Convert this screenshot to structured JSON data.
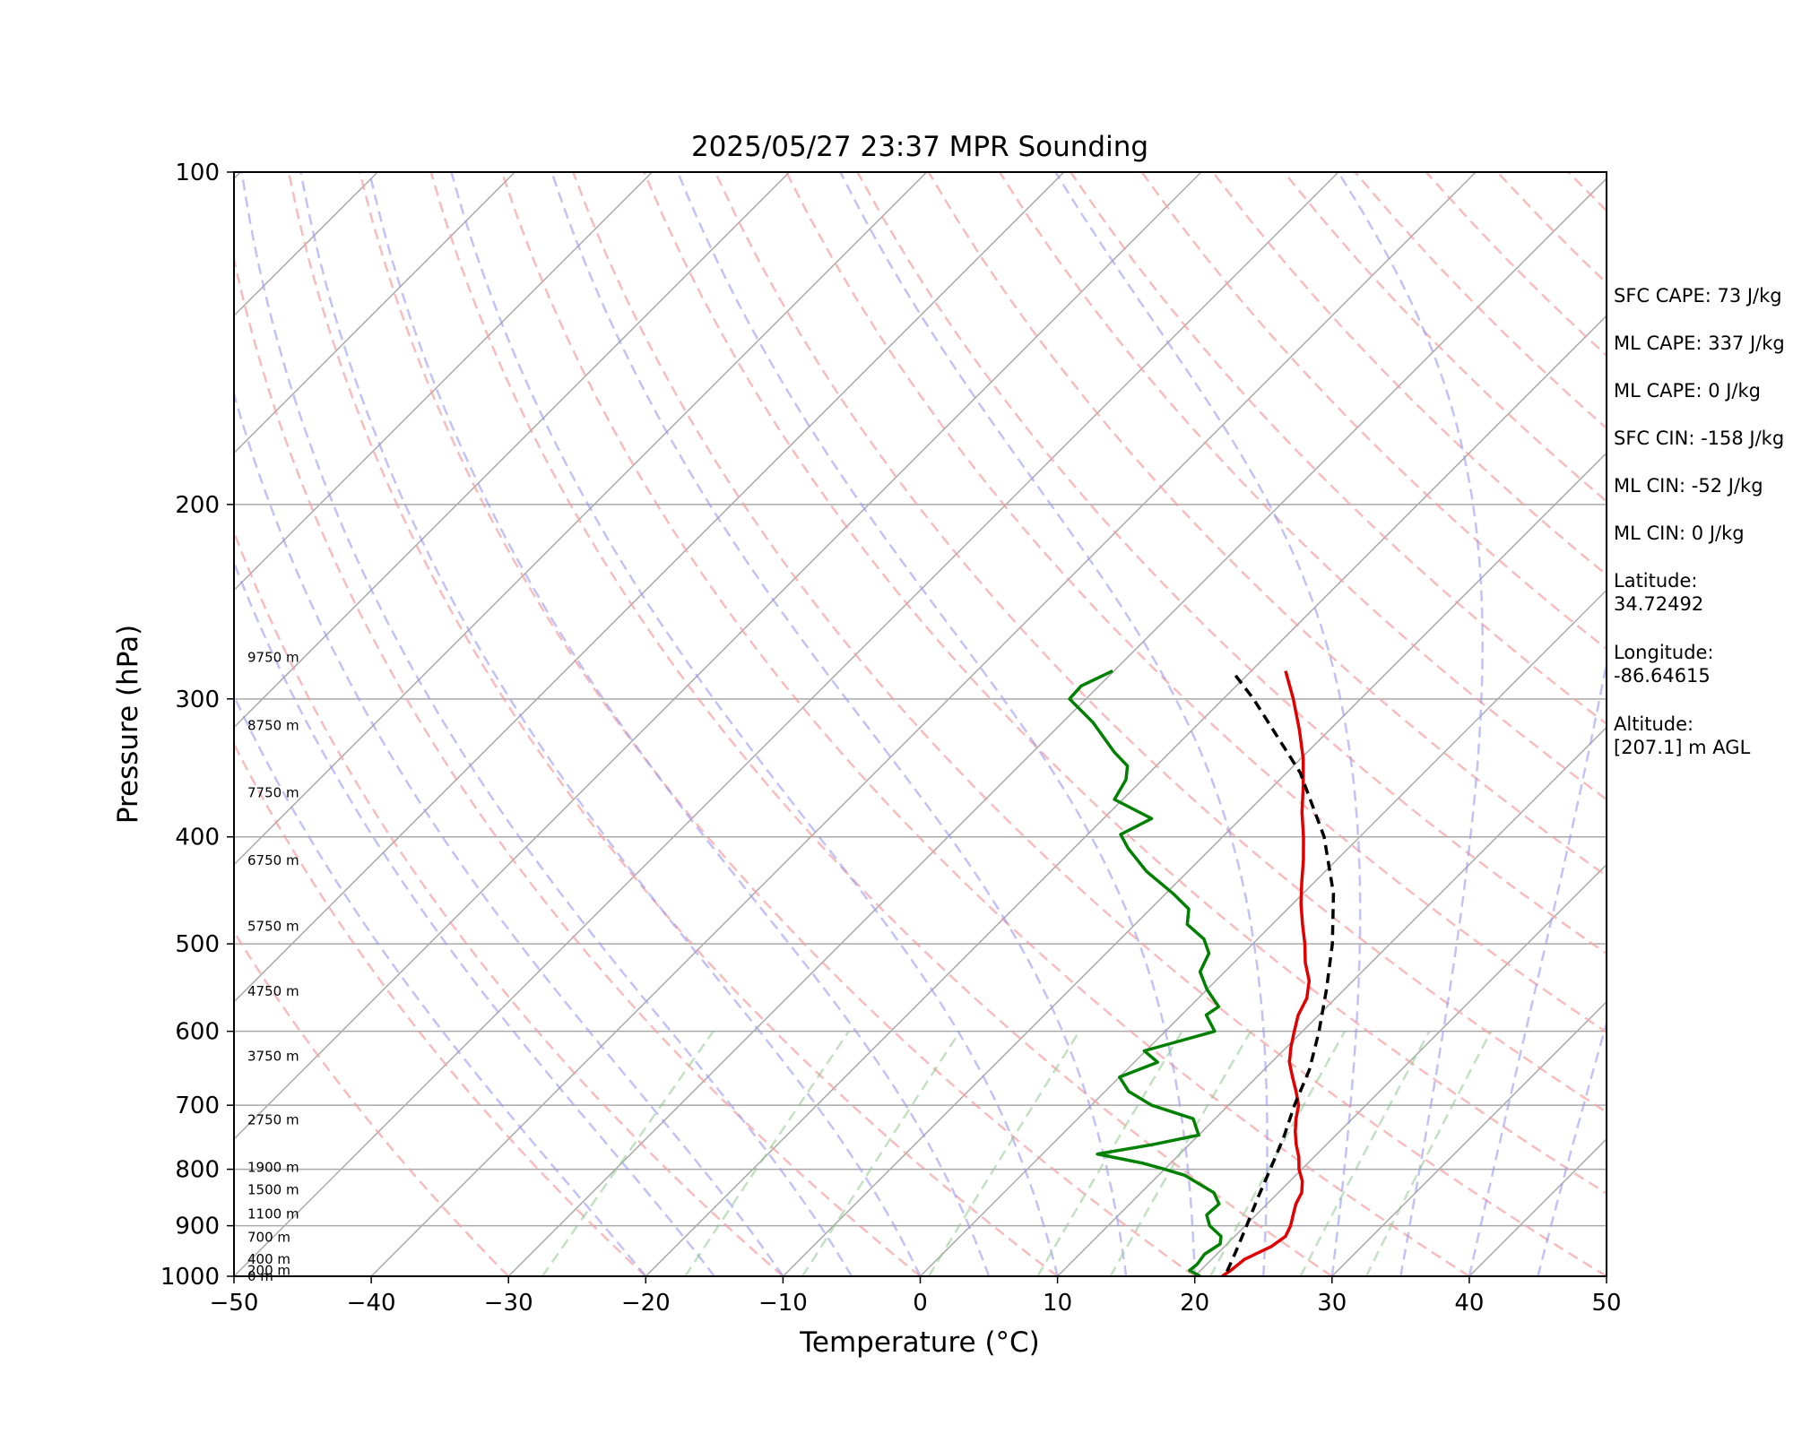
{
  "chart_data": {
    "type": "line",
    "title": "2025/05/27 23:37 MPR Sounding",
    "xlabel": "Temperature (°C)",
    "ylabel": "Pressure (hPa)",
    "xlim": [
      -50,
      50
    ],
    "ylim": [
      1000,
      100
    ],
    "y_scale": "log",
    "skew_t": true,
    "grid": true,
    "x_ticks": [
      -50,
      -40,
      -30,
      -20,
      -10,
      0,
      10,
      20,
      30,
      40,
      50
    ],
    "x_tick_labels": [
      "−50",
      "−40",
      "−30",
      "−20",
      "−10",
      "0",
      "10",
      "20",
      "30",
      "40",
      "50"
    ],
    "y_ticks": [
      1000,
      900,
      800,
      700,
      600,
      500,
      400,
      300,
      200,
      100
    ],
    "y_tick_labels": [
      "1000",
      "900",
      "800",
      "700",
      "600",
      "500",
      "400",
      "300",
      "200",
      "100"
    ],
    "height_labels": [
      {
        "p": 1000,
        "text": "0 m"
      },
      {
        "p": 988,
        "text": "200 m"
      },
      {
        "p": 965,
        "text": "400 m"
      },
      {
        "p": 922,
        "text": "700 m"
      },
      {
        "p": 878,
        "text": "1100 m"
      },
      {
        "p": 835,
        "text": "1500 m"
      },
      {
        "p": 797,
        "text": "1900 m"
      },
      {
        "p": 722,
        "text": "2750 m"
      },
      {
        "p": 632,
        "text": "3750 m"
      },
      {
        "p": 552,
        "text": "4750 m"
      },
      {
        "p": 482,
        "text": "5750 m"
      },
      {
        "p": 420,
        "text": "6750 m"
      },
      {
        "p": 365,
        "text": "7750 m"
      },
      {
        "p": 317,
        "text": "8750 m"
      },
      {
        "p": 275,
        "text": "9750 m"
      }
    ],
    "stats": [
      "SFC CAPE: 73 J/kg",
      "ML CAPE: 337 J/kg",
      "ML CAPE: 0 J/kg",
      "SFC CIN: -158 J/kg",
      "ML CIN: -52 J/kg",
      "ML CIN: 0 J/kg",
      "Latitude:\n34.72492",
      "Longitude:\n-86.64615",
      "Altitude:\n[207.1] m AGL"
    ],
    "series": [
      {
        "color": "#e00000",
        "points": [
          [
            1000,
            22.0
          ],
          [
            988,
            22.2
          ],
          [
            965,
            22.4
          ],
          [
            940,
            23.4
          ],
          [
            920,
            23.7
          ],
          [
            900,
            23.3
          ],
          [
            880,
            22.7
          ],
          [
            860,
            22.1
          ],
          [
            840,
            21.7
          ],
          [
            820,
            20.9
          ],
          [
            800,
            19.8
          ],
          [
            780,
            18.9
          ],
          [
            760,
            17.8
          ],
          [
            740,
            16.8
          ],
          [
            720,
            15.9
          ],
          [
            700,
            15.1
          ],
          [
            680,
            13.9
          ],
          [
            660,
            12.6
          ],
          [
            640,
            11.3
          ],
          [
            620,
            10.3
          ],
          [
            600,
            9.4
          ],
          [
            580,
            8.5
          ],
          [
            560,
            7.9
          ],
          [
            540,
            6.8
          ],
          [
            520,
            5.2
          ],
          [
            500,
            3.8
          ],
          [
            480,
            2.2
          ],
          [
            460,
            0.6
          ],
          [
            440,
            -0.9
          ],
          [
            420,
            -2.4
          ],
          [
            400,
            -4.1
          ],
          [
            380,
            -6.0
          ],
          [
            360,
            -7.8
          ],
          [
            340,
            -9.8
          ],
          [
            320,
            -12.2
          ],
          [
            300,
            -14.9
          ],
          [
            283,
            -17.5
          ]
        ]
      },
      {
        "color": "#008000",
        "points": [
          [
            1000,
            20.4
          ],
          [
            988,
            19.2
          ],
          [
            975,
            19.3
          ],
          [
            955,
            19.1
          ],
          [
            935,
            19.5
          ],
          [
            920,
            19.0
          ],
          [
            900,
            17.4
          ],
          [
            880,
            16.4
          ],
          [
            860,
            16.5
          ],
          [
            840,
            15.3
          ],
          [
            810,
            11.9
          ],
          [
            800,
            10.0
          ],
          [
            790,
            8.0
          ],
          [
            775,
            4.0
          ],
          [
            760,
            7.3
          ],
          [
            745,
            10.0
          ],
          [
            720,
            8.4
          ],
          [
            700,
            4.4
          ],
          [
            680,
            1.7
          ],
          [
            660,
            0.0
          ],
          [
            640,
            1.7
          ],
          [
            625,
            -0.1
          ],
          [
            600,
            3.6
          ],
          [
            580,
            1.8
          ],
          [
            570,
            2.1
          ],
          [
            550,
            0.0
          ],
          [
            530,
            -1.8
          ],
          [
            510,
            -2.5
          ],
          [
            495,
            -3.9
          ],
          [
            480,
            -6.2
          ],
          [
            465,
            -7.2
          ],
          [
            450,
            -9.5
          ],
          [
            430,
            -13.0
          ],
          [
            410,
            -16.0
          ],
          [
            398,
            -17.6
          ],
          [
            385,
            -16.5
          ],
          [
            370,
            -20.6
          ],
          [
            355,
            -21.2
          ],
          [
            345,
            -22.1
          ],
          [
            335,
            -24.1
          ],
          [
            315,
            -27.8
          ],
          [
            300,
            -31.2
          ],
          [
            292,
            -31.3
          ],
          [
            283,
            -30.1
          ]
        ]
      },
      {
        "color": "#000000",
        "dashed": true,
        "points": [
          [
            990,
            22.0
          ],
          [
            950,
            21.2
          ],
          [
            900,
            20.1
          ],
          [
            850,
            18.9
          ],
          [
            800,
            17.7
          ],
          [
            750,
            16.4
          ],
          [
            700,
            14.8
          ],
          [
            650,
            13.3
          ],
          [
            600,
            11.2
          ],
          [
            550,
            8.7
          ],
          [
            500,
            5.8
          ],
          [
            450,
            2.2
          ],
          [
            400,
            -2.6
          ],
          [
            350,
            -9.0
          ],
          [
            300,
            -17.8
          ],
          [
            283,
            -21.4
          ]
        ]
      }
    ]
  }
}
